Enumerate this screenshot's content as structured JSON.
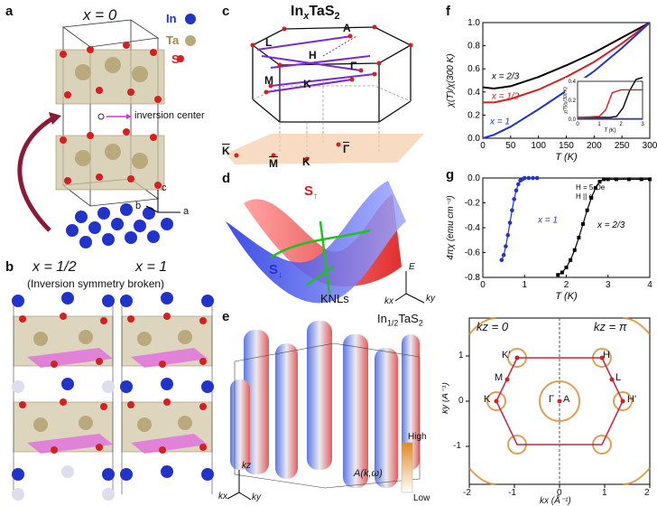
{
  "panels": {
    "a": {
      "label": "a",
      "title": "x = 0",
      "legend": [
        "In",
        "Ta",
        "S"
      ],
      "inversion_label": "inversion center",
      "axes": [
        "c",
        "b",
        "a"
      ]
    },
    "b": {
      "label": "b",
      "left_title": "x = 1/2",
      "right_title": "x = 1",
      "subtitle": "(Inversion symmetry broken)"
    },
    "c": {
      "label": "c",
      "title_main": "In",
      "title_x": "x",
      "title_rest": "TaS",
      "title_sub2": "2",
      "points": [
        "L",
        "A",
        "H",
        "Γ",
        "M",
        "K",
        "K",
        "M",
        "Γ",
        "K"
      ]
    },
    "d": {
      "label": "d",
      "s_up": "S",
      "s_up_sub": "↑",
      "s_down": "S",
      "s_down_sub": "↓",
      "knl_label": "KNLs",
      "axes": [
        "E",
        "kx",
        "ky"
      ]
    },
    "e": {
      "label": "e",
      "title_main": "In",
      "title_sub": "1/2",
      "title_rest": "TaS",
      "title_sub2": "2",
      "axes": [
        "kz",
        "kx",
        "ky"
      ],
      "colorbar_high": "High",
      "colorbar_low": "Low",
      "colorbar_label": "A(k,ω)"
    },
    "f": {
      "label": "f"
    },
    "g": {
      "label": "g"
    },
    "h": {
      "kz0": "kz = 0",
      "kzpi": "kz = π",
      "points": [
        "K'",
        "H",
        "M",
        "L",
        "K",
        "Γ",
        "A",
        "H'"
      ],
      "xlabel": "kx (Å⁻¹)",
      "ylabel": "ky (Å⁻¹)",
      "xticks": [
        "-2",
        "-1",
        "0",
        "1",
        "2"
      ],
      "yticks": [
        "-1",
        "0",
        "1"
      ]
    }
  },
  "colors": {
    "red": "#d42020",
    "blue": "#2233cc",
    "black": "#000000",
    "orange": "#d9903a"
  },
  "chart_data": [
    {
      "type": "line",
      "title": "",
      "xlabel": "T (K)",
      "ylabel": "χ(T)/χ(300 K)",
      "xlim": [
        0,
        300
      ],
      "ylim": [
        0,
        1.0
      ],
      "xticks": [
        0,
        50,
        100,
        150,
        200,
        250,
        300
      ],
      "yticks": [
        0.0,
        0.2,
        0.4,
        0.6,
        0.8,
        1.0
      ],
      "series": [
        {
          "name": "x = 2/3",
          "color": "#000000",
          "x": [
            0,
            20,
            50,
            100,
            150,
            200,
            250,
            300
          ],
          "y": [
            0.44,
            0.43,
            0.45,
            0.53,
            0.63,
            0.74,
            0.87,
            1.0
          ]
        },
        {
          "name": "x = 1/2",
          "color": "#d42020",
          "x": [
            0,
            20,
            50,
            100,
            150,
            200,
            250,
            300
          ],
          "y": [
            0.31,
            0.31,
            0.34,
            0.42,
            0.53,
            0.66,
            0.82,
            1.0
          ]
        },
        {
          "name": "x = 1",
          "color": "#2233cc",
          "x": [
            0,
            20,
            50,
            100,
            150,
            200,
            250,
            300
          ],
          "y": [
            0.0,
            0.03,
            0.1,
            0.25,
            0.41,
            0.58,
            0.78,
            1.0
          ]
        }
      ],
      "inset": {
        "xlabel": "T (K)",
        "ylabel": "χ(T)/χ(300 K)",
        "xlim": [
          0,
          3
        ],
        "ylim": [
          0,
          0.4
        ],
        "xticks": [
          0,
          1,
          2,
          3
        ],
        "yticks": [
          0.0,
          0.2,
          0.4
        ],
        "series": [
          {
            "name": "x = 2/3",
            "color": "#000000",
            "x": [
              0,
              1.5,
              1.8,
              2.1,
              2.4,
              2.7,
              3.0
            ],
            "y": [
              0.02,
              0.02,
              0.03,
              0.12,
              0.3,
              0.42,
              0.44
            ]
          },
          {
            "name": "x = 1/2",
            "color": "#d42020",
            "x": [
              0,
              1.0,
              1.3,
              1.6,
              2.0,
              3.0
            ],
            "y": [
              0.02,
              0.03,
              0.1,
              0.28,
              0.31,
              0.31
            ]
          },
          {
            "name": "x = 1",
            "color": "#2233cc",
            "x": [
              0,
              3.0
            ],
            "y": [
              0.005,
              0.005
            ]
          }
        ]
      }
    },
    {
      "type": "scatter",
      "title": "",
      "xlabel": "T (K)",
      "ylabel": "4πχ (emu cm⁻³)",
      "xlim": [
        0,
        4
      ],
      "ylim": [
        -0.8,
        0.0
      ],
      "xticks": [
        0,
        1,
        2,
        3,
        4
      ],
      "yticks": [
        0.0,
        -0.2,
        -0.4,
        -0.6,
        -0.8
      ],
      "annotations": [
        "H = 5 Oe",
        "H || c"
      ],
      "series": [
        {
          "name": "x = 1",
          "color": "#2233cc",
          "x": [
            0.45,
            0.5,
            0.55,
            0.6,
            0.65,
            0.7,
            0.75,
            0.8,
            0.85,
            0.9,
            0.95,
            1.0,
            1.1,
            1.2,
            1.3
          ],
          "y": [
            -0.66,
            -0.62,
            -0.55,
            -0.46,
            -0.36,
            -0.26,
            -0.17,
            -0.1,
            -0.05,
            -0.02,
            -0.01,
            0.0,
            0.0,
            0.0,
            0.0
          ]
        },
        {
          "name": "x = 2/3",
          "color": "#000000",
          "x": [
            1.8,
            1.9,
            2.0,
            2.1,
            2.2,
            2.3,
            2.4,
            2.5,
            2.6,
            2.7,
            2.8,
            2.9,
            3.0,
            3.2,
            3.5,
            3.8,
            4.0
          ],
          "y": [
            -0.78,
            -0.76,
            -0.72,
            -0.66,
            -0.58,
            -0.48,
            -0.37,
            -0.26,
            -0.16,
            -0.08,
            -0.03,
            -0.01,
            -0.01,
            -0.01,
            -0.01,
            -0.01,
            -0.01
          ]
        }
      ]
    }
  ]
}
